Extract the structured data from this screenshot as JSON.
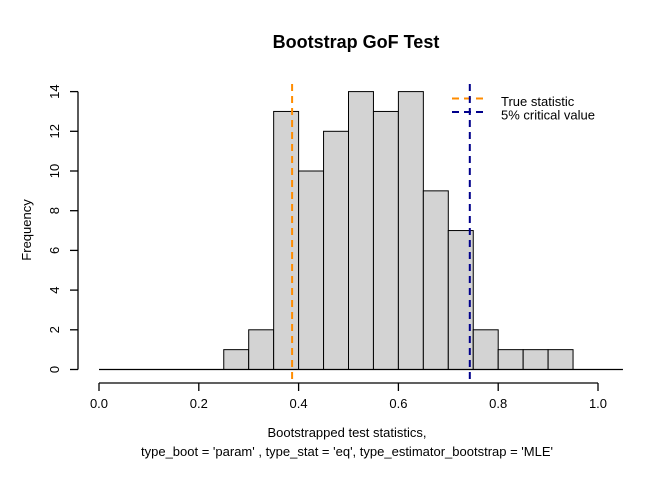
{
  "chart_data": {
    "type": "bar",
    "subtype": "histogram",
    "title": "Bootstrap GoF Test",
    "ylabel": "Frequency",
    "xlabel_line1": "Bootstrapped test statistics,",
    "xlabel_line2": "type_boot = 'param' , type_stat = 'eq', type_estimator_bootstrap = 'MLE'",
    "bin_start": 0.25,
    "bin_width": 0.05,
    "counts": [
      1,
      2,
      13,
      10,
      12,
      14,
      13,
      14,
      9,
      7,
      2,
      1,
      1,
      1
    ],
    "xlim": [
      0.0,
      1.0
    ],
    "ylim": [
      0,
      14
    ],
    "x_ticks": [
      0.0,
      0.2,
      0.4,
      0.6,
      0.8,
      1.0
    ],
    "x_tick_labels": [
      "0.0",
      "0.2",
      "0.4",
      "0.6",
      "0.8",
      "1.0"
    ],
    "y_ticks": [
      0,
      2,
      4,
      6,
      8,
      10,
      12,
      14
    ],
    "y_tick_labels": [
      "0",
      "2",
      "4",
      "6",
      "8",
      "10",
      "12",
      "14"
    ],
    "grid": false,
    "background": "#ffffff",
    "bar_fill": "#d3d3d3",
    "bar_stroke": "#000000",
    "axis_color": "#000000",
    "vlines": [
      {
        "name": "true-statistic",
        "value": 0.387,
        "color": "#ff8c00",
        "style": "dashed",
        "label": "True statistic"
      },
      {
        "name": "critical-value",
        "value": 0.743,
        "color": "#00008b",
        "style": "dashed",
        "label": "5% critical value"
      }
    ],
    "legend": {
      "position": "top-right",
      "frame": false,
      "entries": [
        {
          "label": "True statistic",
          "color": "#ff8c00",
          "line_style": "dashed"
        },
        {
          "label": "5% critical value",
          "color": "#00008b",
          "line_style": "dashed"
        }
      ]
    }
  }
}
